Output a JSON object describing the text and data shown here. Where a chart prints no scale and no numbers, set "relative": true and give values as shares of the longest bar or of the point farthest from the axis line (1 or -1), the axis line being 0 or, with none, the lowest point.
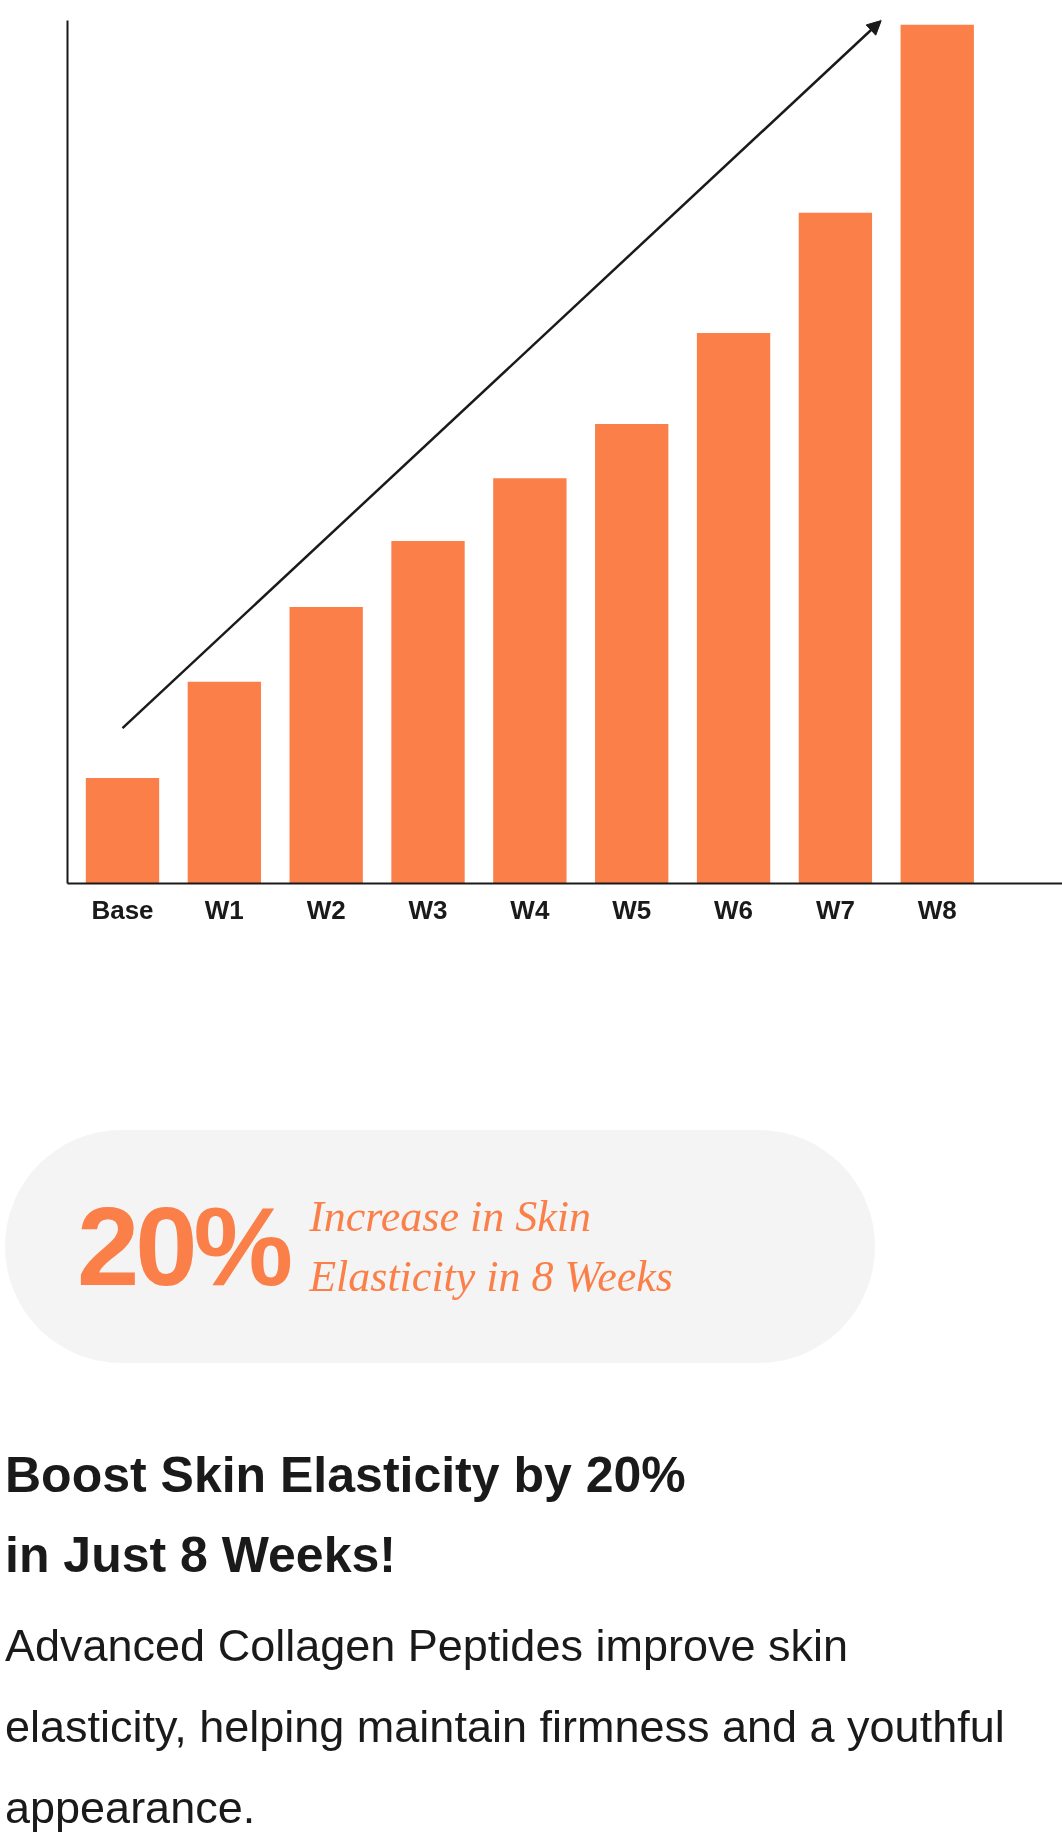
{
  "chart_data": {
    "type": "bar",
    "relative": true,
    "categories": [
      "Base",
      "W1",
      "W2",
      "W3",
      "W4",
      "W5",
      "W6",
      "W7",
      "W8"
    ],
    "values": [
      0.123,
      0.235,
      0.322,
      0.399,
      0.472,
      0.535,
      0.641,
      0.781,
      1
    ],
    "color": "#fb7f48",
    "grid": false,
    "title": "Boost Skin Elasticity by 20%\nin Just 8 Weeks!",
    "annotations": [
      "20%",
      "Increase in Skin\nElasticity in 8 Weeks",
      "Advanced Collagen Peptides improve skin elasticity, helping maintain firmness and a youthful appearance."
    ]
  }
}
